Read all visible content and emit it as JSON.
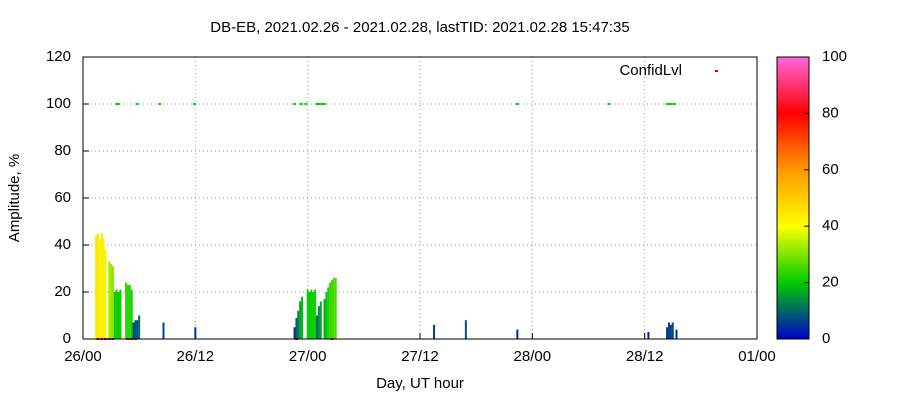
{
  "chart_data": {
    "type": "bar",
    "title": "DB-EB, 2021.02.26 - 2021.02.28, lastTID: 2021.02.28 15:47:35",
    "x_label": "Day, UT hour",
    "y_label": "Amplitude, %",
    "xlim": [
      0,
      72
    ],
    "xticks": [
      {
        "value": 0,
        "label": "26/00"
      },
      {
        "value": 12,
        "label": "26/12"
      },
      {
        "value": 24,
        "label": "27/00"
      },
      {
        "value": 36,
        "label": "27/12"
      },
      {
        "value": 48,
        "label": "28/00"
      },
      {
        "value": 60,
        "label": "28/12"
      },
      {
        "value": 72,
        "label": "01/00"
      }
    ],
    "ylim": [
      0,
      120
    ],
    "yticks": [
      0,
      20,
      40,
      60,
      80,
      100,
      120
    ],
    "grid": true,
    "x": [
      1.4,
      1.6,
      1.8,
      2.0,
      2.2,
      2.4,
      2.8,
      3.0,
      3.2,
      3.4,
      3.6,
      3.8,
      4.0,
      4.6,
      4.8,
      5.0,
      5.2,
      5.4,
      5.6,
      5.8,
      6.0,
      8.6,
      12.0,
      22.6,
      22.8,
      23.0,
      23.2,
      23.4,
      24.0,
      24.2,
      24.4,
      24.6,
      24.8,
      25.0,
      25.2,
      25.4,
      25.8,
      26.0,
      26.2,
      26.4,
      26.6,
      26.8,
      27.0,
      37.5,
      40.9,
      46.4,
      60.4,
      62.4,
      62.6,
      62.8,
      63.0,
      63.4
    ],
    "values": [
      44,
      45,
      42,
      45,
      43,
      38,
      33,
      32,
      31,
      20,
      21,
      20,
      21,
      24,
      23,
      23,
      21,
      7,
      8,
      8,
      10,
      7,
      5,
      5,
      9,
      12,
      16,
      18,
      21,
      20,
      21,
      20,
      21,
      10,
      14,
      16,
      17,
      20,
      22,
      24,
      25,
      26,
      26,
      6,
      8,
      4,
      3,
      5,
      7,
      6,
      7,
      4
    ],
    "points": {
      "name": "ConfidLvl",
      "color": "#cc0000",
      "x": [
        3.6,
        3.8,
        5.8,
        8.2,
        11.9,
        22.6,
        23.3,
        23.8,
        25.0,
        25.2,
        25.4,
        25.6,
        25.8,
        46.4,
        56.2,
        62.4,
        62.6,
        62.8,
        63.0,
        63.2,
        1.6,
        2.0,
        2.4,
        2.8,
        3.2,
        4.8,
        5.2,
        5.6,
        22.8,
        26.6
      ],
      "values": [
        100,
        100,
        100,
        100,
        100,
        100,
        100,
        100,
        100,
        100,
        100,
        100,
        100,
        100,
        100,
        100,
        100,
        100,
        100,
        100,
        0,
        0,
        0,
        0,
        0,
        0,
        0,
        0,
        0,
        0
      ],
      "colors": [
        "#00dd00",
        "#00dd00",
        "#00dd00",
        "#00dd00",
        "#00dd00",
        "#00dd00",
        "#00dd00",
        "#00dd00",
        "#00dd00",
        "#00dd00",
        "#00dd00",
        "#00dd00",
        "#00dd00",
        "#00dd00",
        "#00dd00",
        "#00dd00",
        "#00dd00",
        "#00dd00",
        "#00dd00",
        "#00dd00",
        "#cc0000",
        "#cc0000",
        "#cc0000",
        "#cc0000",
        "#cc0000",
        "#cc0000",
        "#cc0000",
        "#cc0000",
        "#cc0000",
        "#cc0000"
      ]
    },
    "colorbar": {
      "lim": [
        0,
        100
      ],
      "ticks": [
        0,
        20,
        40,
        60,
        80,
        100
      ],
      "colors": [
        "#0000cc",
        "#00cc00",
        "#ffff00",
        "#ff9900",
        "#ff0000",
        "#ff66dd"
      ]
    }
  }
}
